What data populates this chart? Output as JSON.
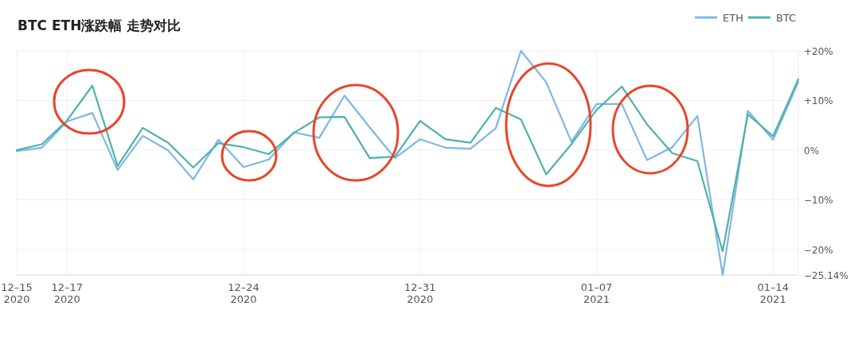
{
  "chart_data": {
    "type": "line",
    "title": "BTC ETH涨跌幅 走势对比",
    "x": [
      "2020-12-15",
      "2020-12-16",
      "2020-12-17",
      "2020-12-18",
      "2020-12-19",
      "2020-12-20",
      "2020-12-21",
      "2020-12-22",
      "2020-12-23",
      "2020-12-24",
      "2020-12-25",
      "2020-12-26",
      "2020-12-27",
      "2020-12-28",
      "2020-12-29",
      "2020-12-30",
      "2020-12-31",
      "2021-01-01",
      "2021-01-02",
      "2021-01-03",
      "2021-01-04",
      "2021-01-05",
      "2021-01-06",
      "2021-01-07",
      "2021-01-08",
      "2021-01-09",
      "2021-01-10",
      "2021-01-11",
      "2021-01-12",
      "2021-01-13",
      "2021-01-14",
      "2021-01-15"
    ],
    "series": [
      {
        "name": "ETH",
        "color": "#7fb6e8",
        "values": [
          -0.2,
          0.5,
          5.8,
          7.5,
          -4.0,
          2.9,
          0.0,
          -5.9,
          2.1,
          -3.4,
          -1.9,
          3.6,
          2.5,
          11.0,
          4.6,
          -1.6,
          2.2,
          0.5,
          0.3,
          4.4,
          20.0,
          13.7,
          1.7,
          9.3,
          9.3,
          -2.0,
          0.6,
          6.9,
          -25.14,
          7.9,
          2.1,
          13.7
        ]
      },
      {
        "name": "BTC",
        "color": "#4db3a8",
        "values": [
          0.0,
          1.2,
          6.0,
          13.0,
          -3.2,
          4.5,
          1.5,
          -3.5,
          1.4,
          0.6,
          -0.8,
          3.5,
          6.6,
          6.7,
          -1.6,
          -1.3,
          5.9,
          2.2,
          1.5,
          8.5,
          6.2,
          -4.9,
          1.2,
          8.1,
          12.8,
          5.2,
          -0.6,
          -2.2,
          -20.4,
          7.2,
          2.8,
          14.3
        ]
      }
    ],
    "xlim": [
      "2020-12-15",
      "2021-01-15"
    ],
    "xticks": [
      {
        "value": "2020-12-15",
        "label": "12–15 2020"
      },
      {
        "value": "2020-12-17",
        "label": "12–17 2020"
      },
      {
        "value": "2020-12-24",
        "label": "12–24 2020"
      },
      {
        "value": "2020-12-31",
        "label": "12–31 2020"
      },
      {
        "value": "2021-01-07",
        "label": "01–07 2021"
      },
      {
        "value": "2021-01-14",
        "label": "01–14 2021"
      }
    ],
    "ylim": [
      -25.14,
      20
    ],
    "yticks": [
      {
        "value": 20,
        "label": "+20%"
      },
      {
        "value": 10,
        "label": "+10%"
      },
      {
        "value": 0,
        "label": "0%"
      },
      {
        "value": -10,
        "label": "−10%"
      },
      {
        "value": -20,
        "label": "−20%"
      },
      {
        "value": -25.14,
        "label": "−25.14%"
      }
    ],
    "grid": true,
    "legend": "top right",
    "marker": "none",
    "line_style": "solid"
  }
}
